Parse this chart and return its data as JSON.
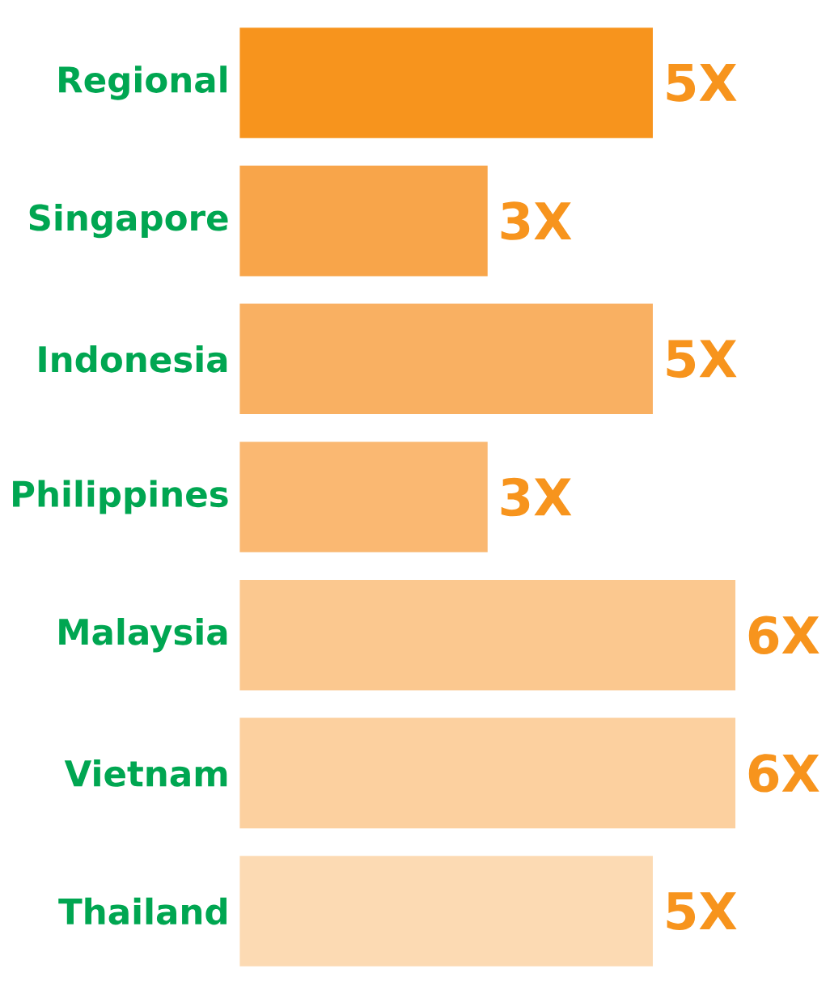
{
  "chart_data": {
    "type": "bar",
    "orientation": "horizontal",
    "categories": [
      "Regional",
      "Singapore",
      "Indonesia",
      "Philippines",
      "Malaysia",
      "Vietnam",
      "Thailand"
    ],
    "values": [
      5,
      3,
      5,
      3,
      6,
      6,
      5
    ],
    "value_labels": [
      "5X",
      "3X",
      "5X",
      "3X",
      "6X",
      "6X",
      "5X"
    ],
    "colors": [
      "#f7941d",
      "#f8a54a",
      "#f9b062",
      "#fab872",
      "#fbc88f",
      "#fcd09f",
      "#fcdab3"
    ]
  }
}
